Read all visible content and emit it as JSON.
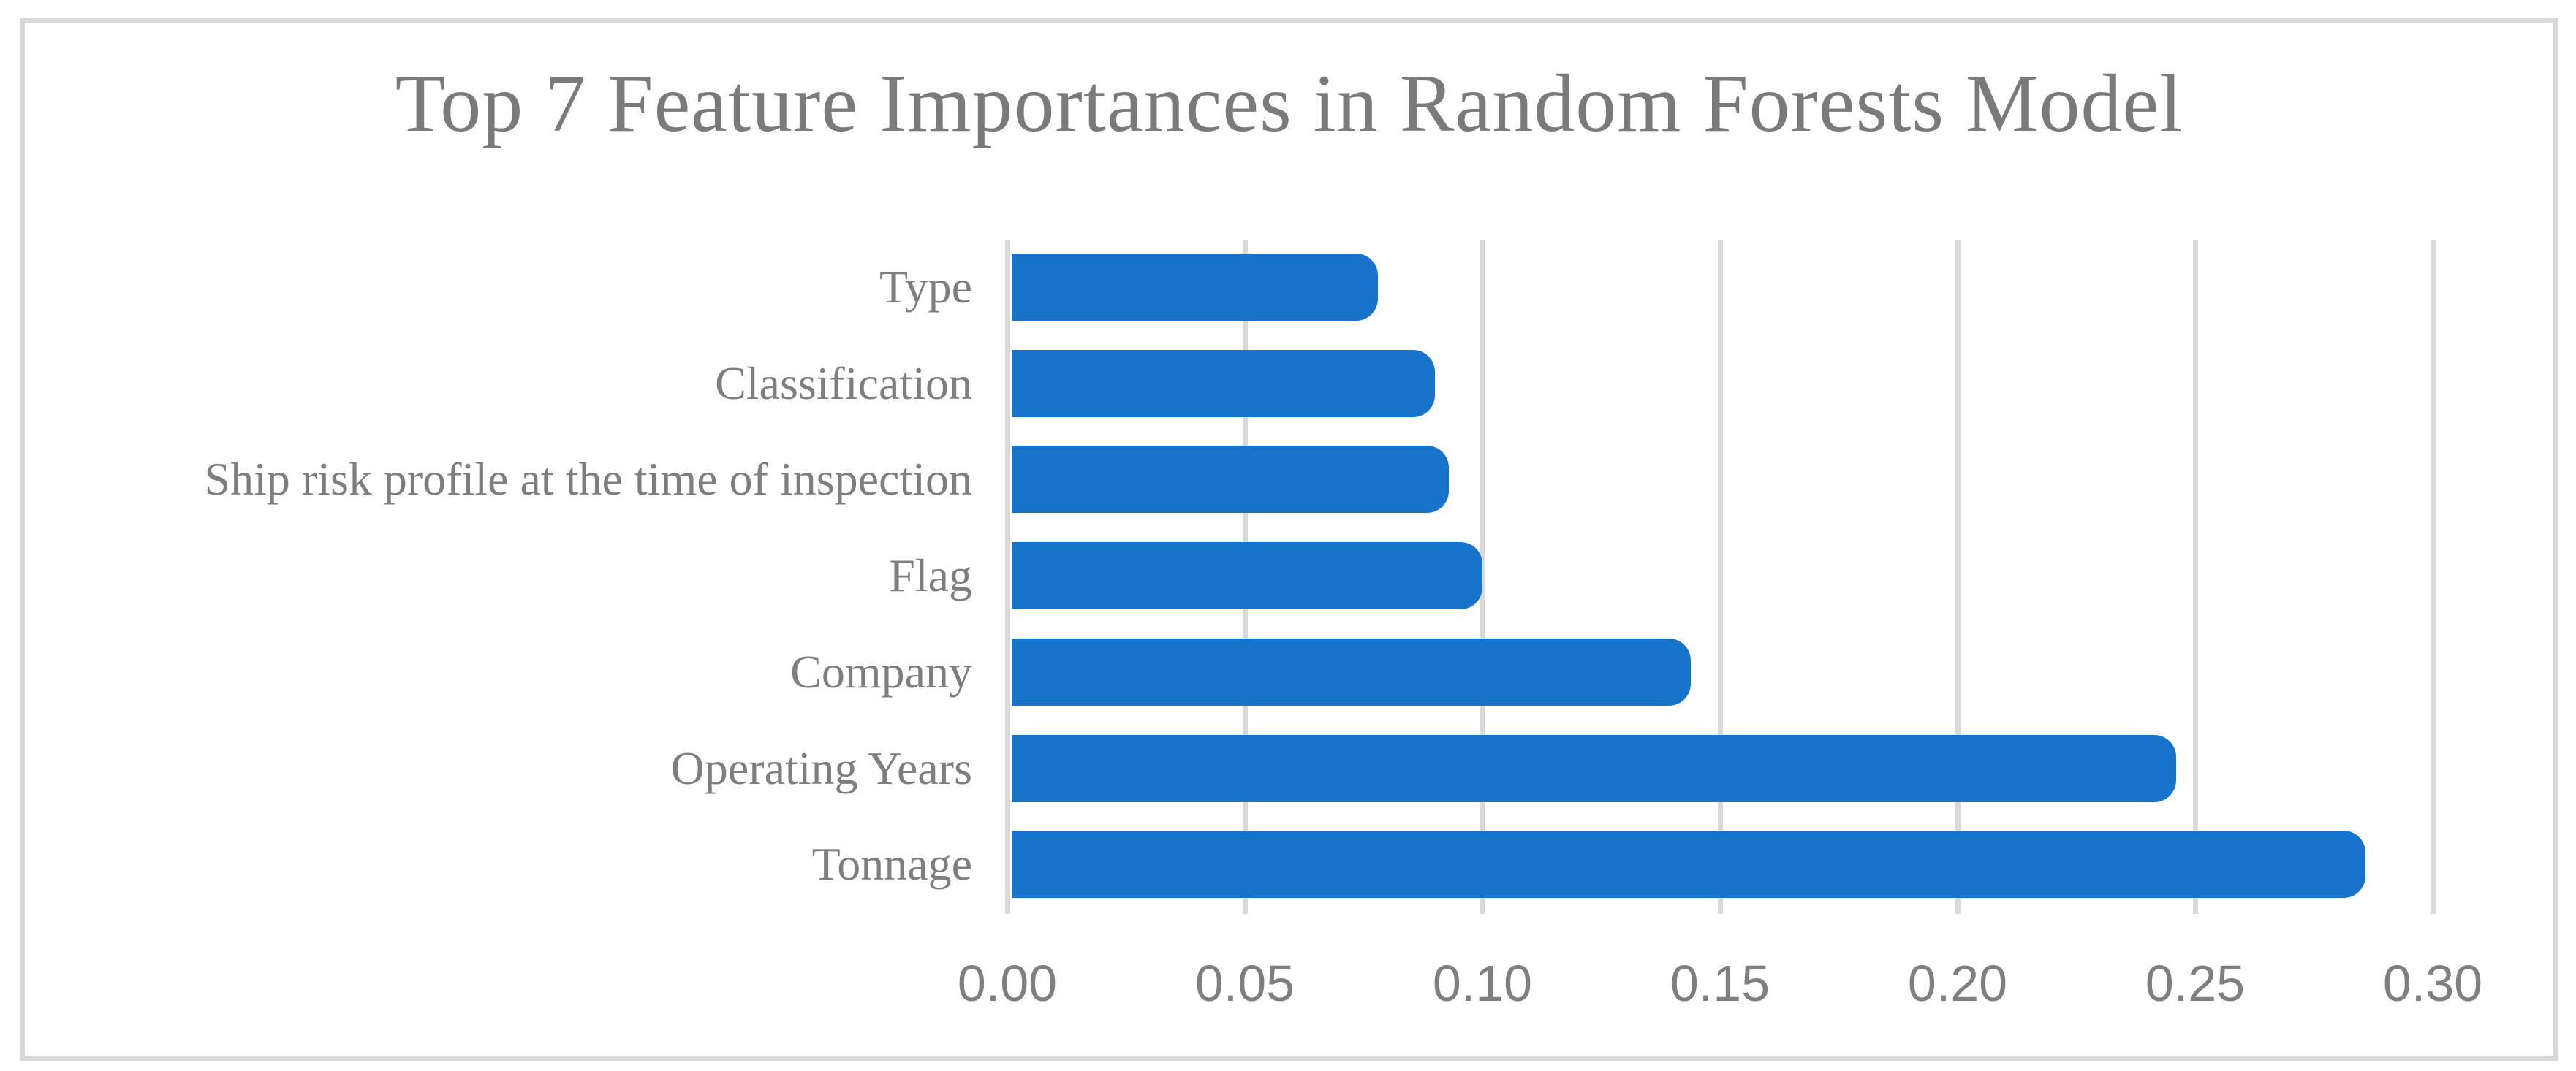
{
  "chart_data": {
    "type": "bar",
    "orientation": "horizontal",
    "title": "Top 7 Feature Importances in Random Forests Model",
    "categories": [
      "Type",
      "Classification",
      "Ship risk profile at the time of inspection",
      "Flag",
      "Company",
      "Operating Years",
      "Tonnage"
    ],
    "values": [
      0.077,
      0.089,
      0.092,
      0.099,
      0.143,
      0.245,
      0.285
    ],
    "xlabel": "",
    "ylabel": "",
    "xlim": [
      0,
      0.3
    ],
    "xticks": [
      "0.00",
      "0.05",
      "0.10",
      "0.15",
      "0.20",
      "0.25",
      "0.30"
    ],
    "grid": "vertical-gridlines",
    "legend": "none",
    "bar_color": "#1874ca",
    "text_color": "#7a7a7a",
    "grid_color": "#d9d9d9",
    "background_color": "#ffffff"
  }
}
